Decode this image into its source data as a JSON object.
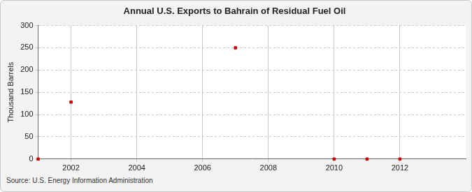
{
  "chart_data": {
    "type": "scatter",
    "title": "Annual U.S. Exports to Bahrain of Residual Fuel Oil",
    "y_label": "Thousand Barrels",
    "source": "Source: U.S. Energy Information Administration",
    "x": [
      2001,
      2002,
      2007,
      2010,
      2011,
      2012
    ],
    "values": [
      0,
      128,
      250,
      0,
      0,
      0
    ],
    "color": "#cc0000",
    "marker": "square",
    "xlim": [
      2001,
      2014
    ],
    "xticks": [
      2002,
      2004,
      2006,
      2008,
      2010,
      2012
    ],
    "ylim": [
      0,
      300
    ],
    "yticks": [
      0,
      50,
      100,
      150,
      200,
      250,
      300
    ],
    "grid": true
  }
}
